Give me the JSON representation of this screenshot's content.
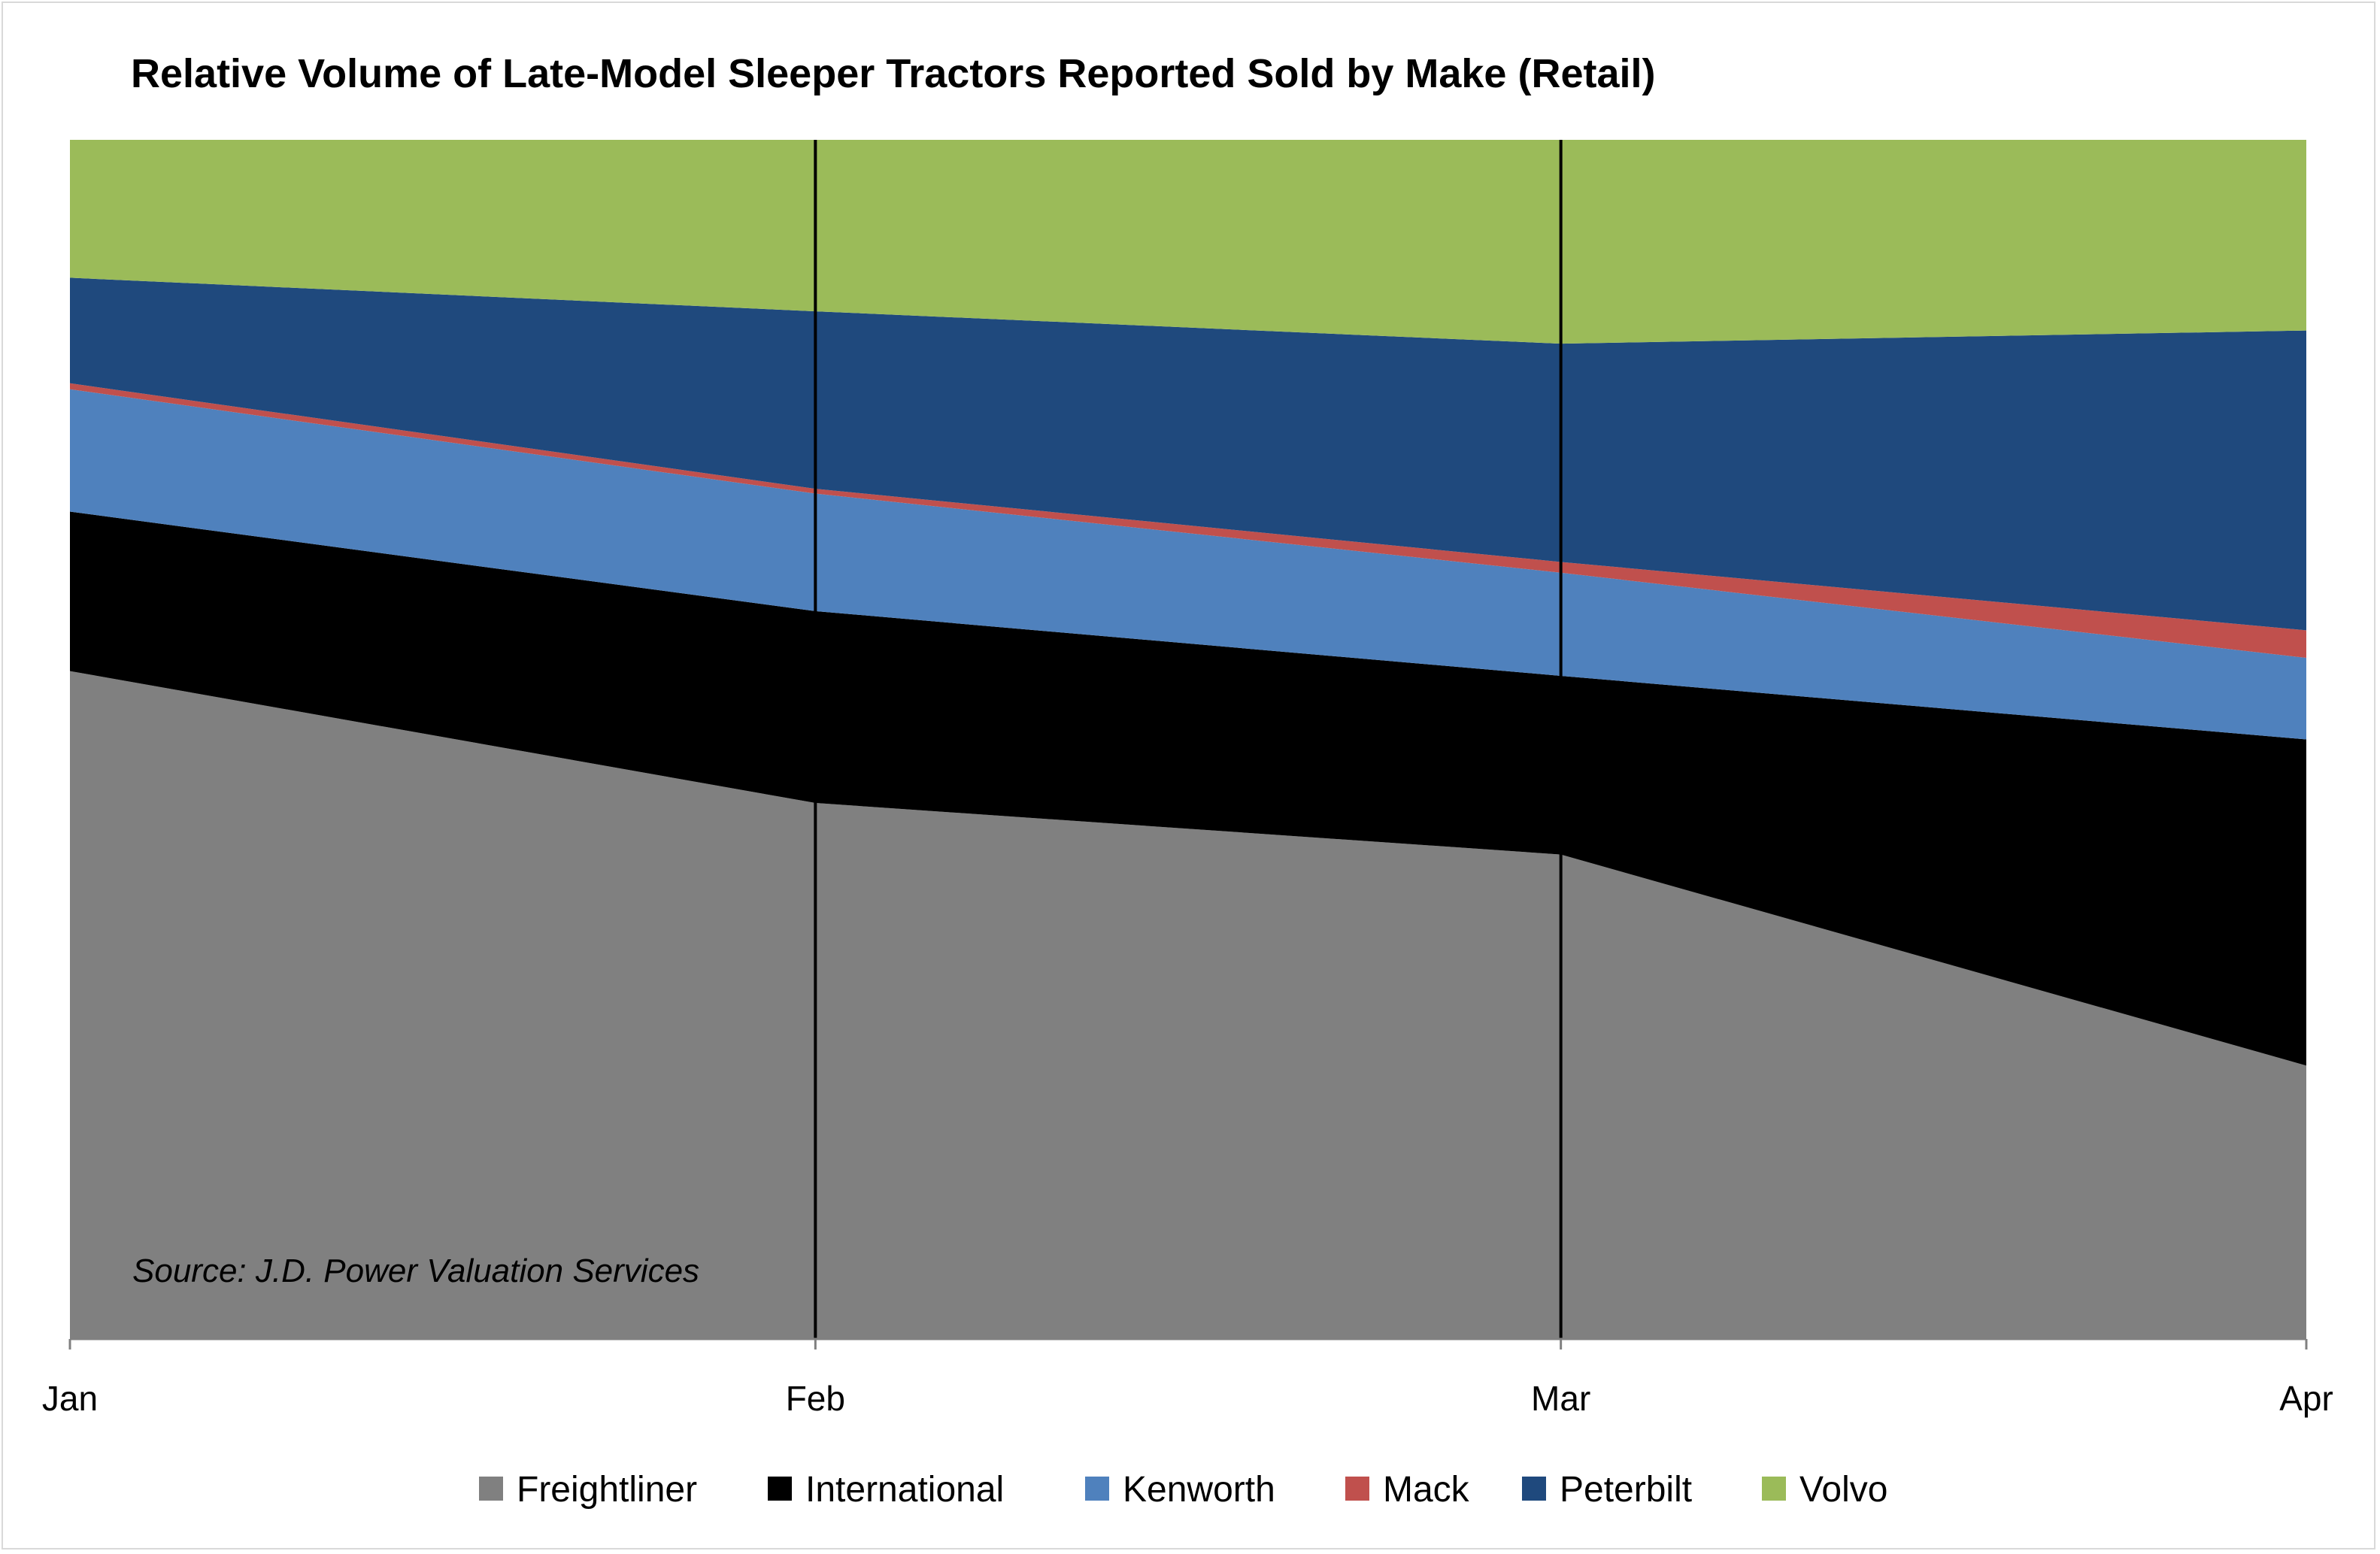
{
  "chart_data": {
    "type": "area",
    "stacking": "percent",
    "title": "Relative Volume of Late-Model Sleeper Tractors Reported Sold by Make (Retail)",
    "xlabel": "",
    "ylabel": "",
    "categories": [
      "Jan",
      "Feb",
      "Mar",
      "Apr"
    ],
    "ylim": [
      0,
      100
    ],
    "grid": false,
    "category_drop_lines": [
      "Feb",
      "Mar"
    ],
    "legend": "bottom",
    "annotation": "Source: J.D. Power Valuation Services",
    "series": [
      {
        "name": "Freightliner",
        "color": "#808080",
        "values": [
          55.7,
          44.7,
          40.4,
          22.8
        ]
      },
      {
        "name": "International",
        "color": "#000000",
        "values": [
          13.3,
          16.0,
          14.9,
          27.2
        ]
      },
      {
        "name": "Kenworth",
        "color": "#4f81bd",
        "values": [
          10.2,
          9.8,
          8.6,
          6.8
        ]
      },
      {
        "name": "Mack",
        "color": "#c0504d",
        "values": [
          0.5,
          0.4,
          0.9,
          2.3
        ]
      },
      {
        "name": "Peterbilt",
        "color": "#1f497d",
        "values": [
          8.8,
          14.8,
          18.2,
          25.0
        ]
      },
      {
        "name": "Volvo",
        "color": "#9bbb59",
        "values": [
          11.5,
          14.3,
          17.0,
          15.9
        ]
      }
    ]
  }
}
